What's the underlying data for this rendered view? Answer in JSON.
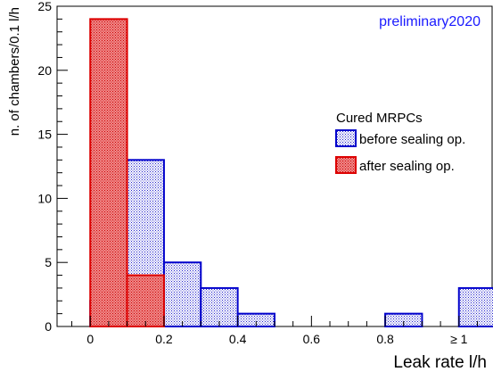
{
  "chart_data": {
    "type": "bar",
    "annotation": "preliminary2020",
    "xlabel": "Leak rate l/h",
    "ylabel": "n. of chambers/0.1 l/h",
    "xlim": [
      -0.09,
      1.09
    ],
    "ylim": [
      0,
      25
    ],
    "bin_width": 0.1,
    "x_tick_labels": [
      {
        "value": 0,
        "label": "0"
      },
      {
        "value": 0.2,
        "label": "0.2"
      },
      {
        "value": 0.4,
        "label": "0.4"
      },
      {
        "value": 0.6,
        "label": "0.6"
      },
      {
        "value": 0.8,
        "label": "0.8"
      },
      {
        "value": 1.0,
        "label": "≥ 1"
      }
    ],
    "y_tick_labels": [
      {
        "value": 0,
        "label": "0"
      },
      {
        "value": 5,
        "label": "5"
      },
      {
        "value": 10,
        "label": "10"
      },
      {
        "value": 15,
        "label": "15"
      },
      {
        "value": 20,
        "label": "20"
      },
      {
        "value": 25,
        "label": "25"
      }
    ],
    "legend": {
      "title": "Cured MRPCs",
      "placement": "right"
    },
    "series": [
      {
        "name": "before sealing op.",
        "color": "#0000cc",
        "fill": "#aaaaee",
        "bin_starts": [
          0.0,
          0.1,
          0.2,
          0.3,
          0.4,
          0.5,
          0.6,
          0.7,
          0.8,
          0.9,
          1.0
        ],
        "values": [
          2,
          13,
          5,
          3,
          1,
          0,
          0,
          0,
          1,
          0,
          3
        ]
      },
      {
        "name": "after sealing op.",
        "color": "#dd0000",
        "fill": "#ee7777",
        "bin_starts": [
          0.0,
          0.1
        ],
        "values": [
          24,
          4
        ]
      }
    ]
  }
}
